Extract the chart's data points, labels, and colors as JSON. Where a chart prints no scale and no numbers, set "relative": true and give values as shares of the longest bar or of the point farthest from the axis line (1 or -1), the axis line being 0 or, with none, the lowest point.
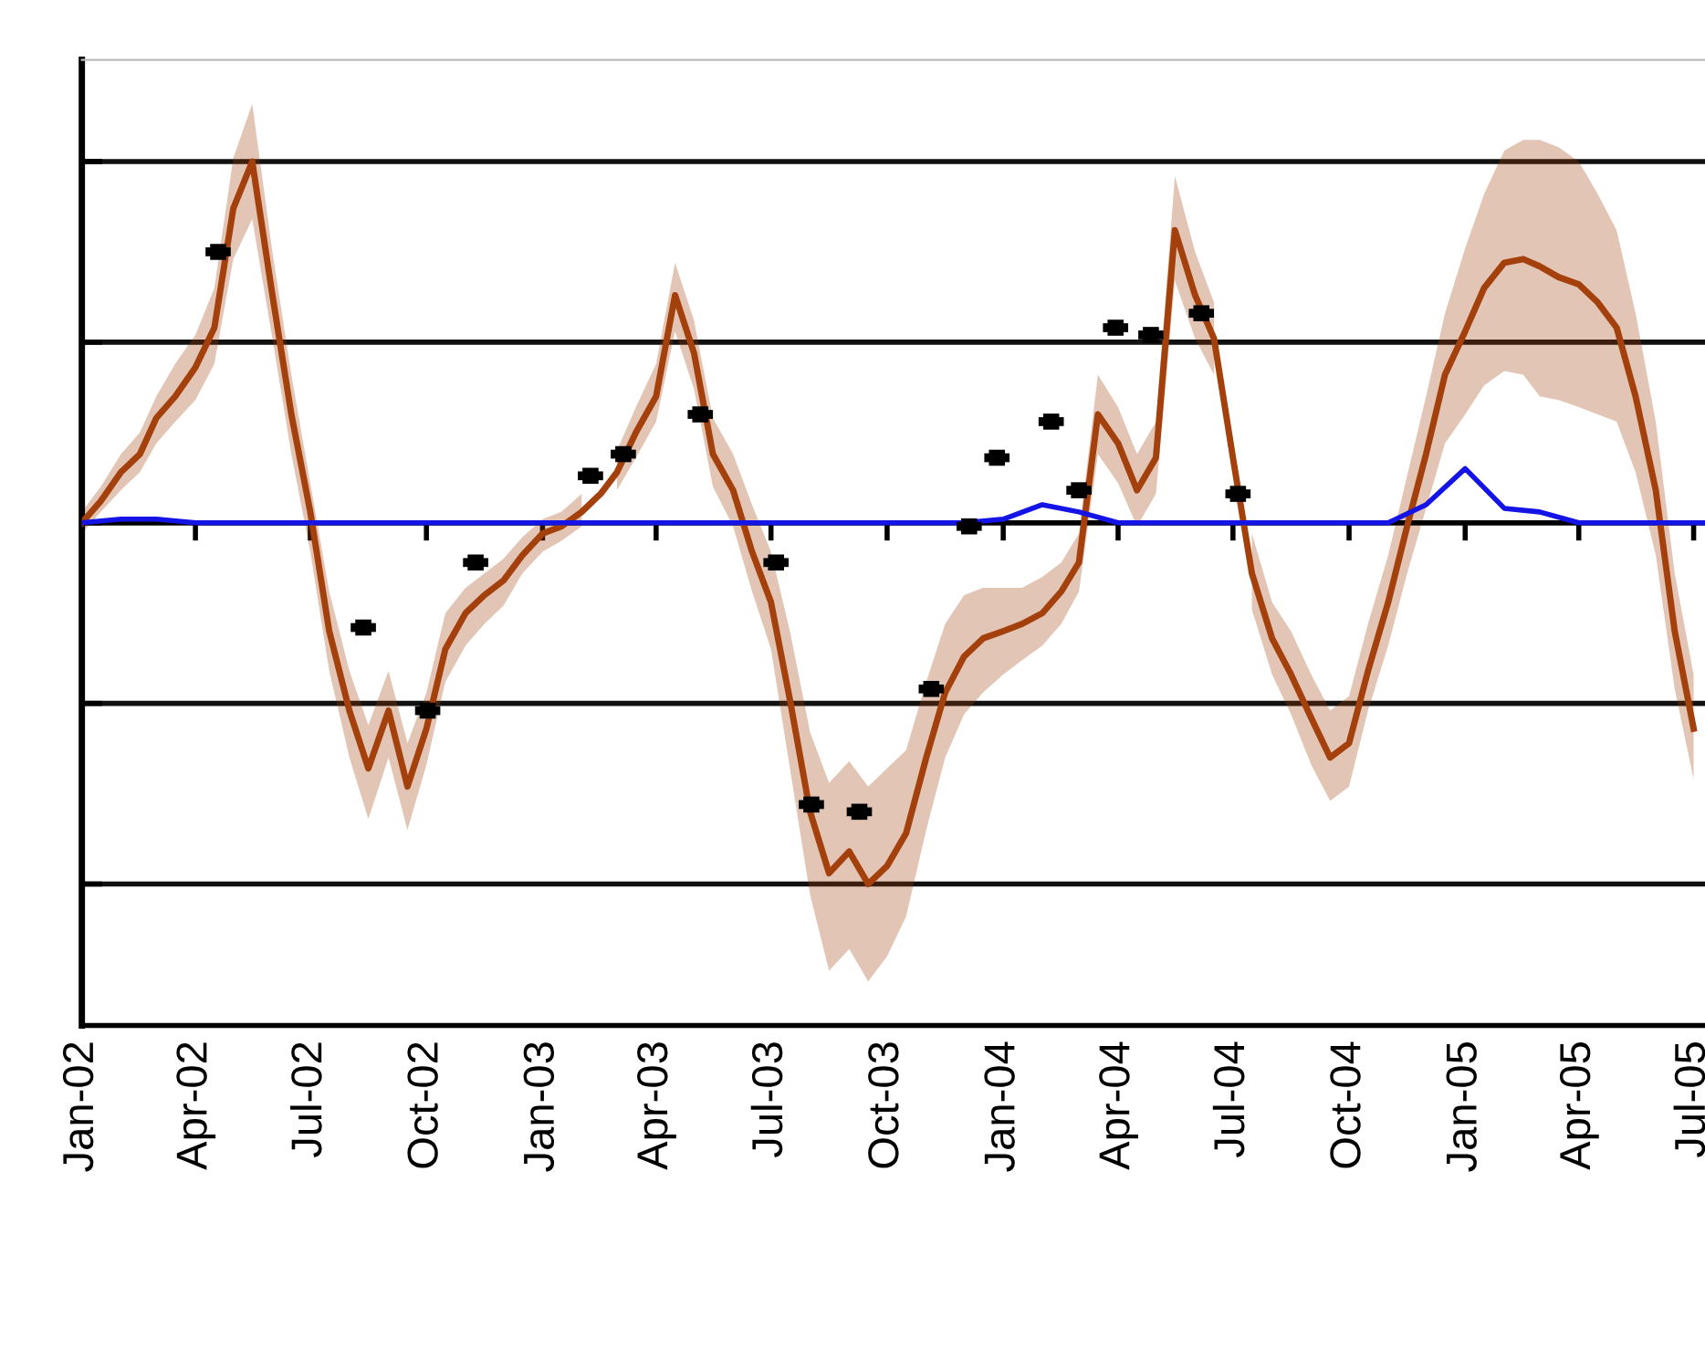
{
  "chart_data": {
    "type": "line",
    "relative": true,
    "grid": "y",
    "legend": false,
    "xlim": [
      "2002-01-01",
      "2005-07-10"
    ],
    "xticks": [
      {
        "value": "2002-01-01",
        "label": "Jan-02"
      },
      {
        "value": "2002-04-01",
        "label": "Apr-02"
      },
      {
        "value": "2002-07-01",
        "label": "Jul-02"
      },
      {
        "value": "2002-10-01",
        "label": "Oct-02"
      },
      {
        "value": "2003-01-01",
        "label": "Jan-03"
      },
      {
        "value": "2003-04-01",
        "label": "Apr-03"
      },
      {
        "value": "2003-07-01",
        "label": "Jul-03"
      },
      {
        "value": "2003-10-01",
        "label": "Oct-03"
      },
      {
        "value": "2004-01-01",
        "label": "Jan-04"
      },
      {
        "value": "2004-04-01",
        "label": "Apr-04"
      },
      {
        "value": "2004-07-01",
        "label": "Jul-04"
      },
      {
        "value": "2004-10-01",
        "label": "Oct-04"
      },
      {
        "value": "2005-01-01",
        "label": "Jan-05"
      },
      {
        "value": "2005-04-01",
        "label": "Apr-05"
      },
      {
        "value": "2005-07-01",
        "label": "Jul-05"
      }
    ],
    "series": [
      {
        "color": "#a3400c",
        "line_style": "solid",
        "marker": "none",
        "x": [
          "2002-01-01",
          "2002-01-16",
          "2002-02-01",
          "2002-02-16",
          "2002-03-01",
          "2002-03-16",
          "2002-04-01",
          "2002-04-16",
          "2002-05-01",
          "2002-05-16",
          "2002-06-01",
          "2002-06-16",
          "2002-07-01",
          "2002-07-16",
          "2002-08-01",
          "2002-08-16",
          "2002-09-01",
          "2002-09-16",
          "2002-10-01",
          "2002-10-16",
          "2002-11-01",
          "2002-11-16",
          "2002-12-01",
          "2002-12-16",
          "2003-01-01",
          "2003-01-16",
          "2003-02-01",
          "2003-02-16",
          "2003-03-01",
          "2003-03-16",
          "2003-04-01",
          "2003-04-16",
          "2003-05-01",
          "2003-05-16",
          "2003-06-01",
          "2003-06-16",
          "2003-07-01",
          "2003-07-16",
          "2003-08-01",
          "2003-08-16",
          "2003-09-01",
          "2003-09-16",
          "2003-10-01",
          "2003-10-16",
          "2003-11-01",
          "2003-11-16",
          "2003-12-01",
          "2003-12-16",
          "2004-01-01",
          "2004-01-16",
          "2004-02-01",
          "2004-02-16",
          "2004-03-01",
          "2004-03-16",
          "2004-04-01",
          "2004-04-16",
          "2004-05-01",
          "2004-05-16",
          "2004-06-01",
          "2004-06-16",
          "2004-07-01",
          "2004-07-16",
          "2004-08-01",
          "2004-08-16",
          "2004-09-01",
          "2004-09-16",
          "2004-10-01",
          "2004-10-16",
          "2004-11-01",
          "2004-11-16",
          "2004-12-01",
          "2004-12-16",
          "2005-01-01",
          "2005-01-16",
          "2005-02-01",
          "2005-02-16",
          "2005-03-01",
          "2005-03-16",
          "2005-04-01",
          "2005-04-16",
          "2005-05-01",
          "2005-05-16",
          "2005-06-01",
          "2005-06-16",
          "2005-07-01"
        ],
        "values": [
          0,
          0.06,
          0.14,
          0.19,
          0.29,
          0.35,
          0.43,
          0.54,
          0.87,
          1.0,
          0.63,
          0.3,
          0.03,
          -0.3,
          -0.52,
          -0.68,
          -0.52,
          -0.73,
          -0.57,
          -0.35,
          -0.25,
          -0.2,
          -0.16,
          -0.09,
          -0.03,
          -0.01,
          0.03,
          0.08,
          0.14,
          0.25,
          0.35,
          0.63,
          0.47,
          0.19,
          0.09,
          -0.08,
          -0.22,
          -0.49,
          -0.8,
          -0.97,
          -0.91,
          -1.0,
          -0.95,
          -0.86,
          -0.65,
          -0.47,
          -0.37,
          -0.32,
          -0.3,
          -0.28,
          -0.25,
          -0.19,
          -0.11,
          0.3,
          0.22,
          0.09,
          0.18,
          0.81,
          0.63,
          0.51,
          0.18,
          -0.14,
          -0.32,
          -0.42,
          -0.54,
          -0.65,
          -0.61,
          -0.41,
          -0.22,
          -0.01,
          0.19,
          0.41,
          0.53,
          0.65,
          0.72,
          0.73,
          0.71,
          0.68,
          0.66,
          0.61,
          0.54,
          0.35,
          0.09,
          -0.3,
          -0.57
        ],
        "lower": [
          -0.03,
          0.03,
          0.09,
          0.14,
          0.22,
          0.28,
          0.34,
          0.44,
          0.73,
          0.84,
          0.51,
          0.19,
          -0.08,
          -0.41,
          -0.65,
          -0.82,
          -0.65,
          -0.85,
          -0.67,
          -0.44,
          -0.34,
          -0.28,
          -0.23,
          -0.14,
          -0.08,
          -0.05,
          -0.01,
          null,
          0.09,
          0.18,
          0.28,
          0.53,
          0.37,
          0.1,
          -0.01,
          -0.19,
          -0.35,
          -0.68,
          -1.03,
          -1.24,
          -1.18,
          -1.27,
          -1.2,
          -1.09,
          -0.85,
          -0.65,
          -0.53,
          -0.47,
          -0.42,
          -0.38,
          -0.34,
          -0.28,
          -0.19,
          0.19,
          0.11,
          -0.01,
          0.08,
          0.67,
          0.51,
          0.41,
          null,
          -0.24,
          -0.42,
          -0.53,
          -0.67,
          -0.77,
          -0.73,
          -0.52,
          -0.34,
          -0.14,
          0.04,
          0.22,
          0.3,
          0.38,
          0.42,
          0.41,
          0.35,
          0.34,
          0.32,
          0.3,
          0.28,
          0.14,
          -0.09,
          -0.46,
          -0.71
        ],
        "upper": [
          0.03,
          0.1,
          0.19,
          0.25,
          0.35,
          0.44,
          0.52,
          0.65,
          1.01,
          1.16,
          0.75,
          0.41,
          0.11,
          -0.19,
          -0.41,
          -0.56,
          -0.41,
          -0.61,
          -0.47,
          -0.25,
          -0.18,
          -0.14,
          -0.1,
          -0.04,
          0.01,
          0.03,
          0.08,
          null,
          0.2,
          0.32,
          0.44,
          0.72,
          0.56,
          0.29,
          0.19,
          0.05,
          -0.08,
          -0.3,
          -0.58,
          -0.72,
          -0.66,
          -0.73,
          -0.68,
          -0.63,
          -0.44,
          -0.28,
          -0.2,
          -0.18,
          -0.18,
          -0.18,
          -0.15,
          -0.11,
          -0.03,
          0.41,
          0.32,
          0.19,
          0.28,
          0.96,
          0.75,
          0.61,
          null,
          -0.03,
          -0.22,
          -0.3,
          -0.42,
          -0.52,
          -0.48,
          -0.28,
          -0.09,
          0.13,
          0.35,
          0.58,
          0.76,
          0.91,
          1.03,
          1.06,
          1.06,
          1.04,
          1.0,
          0.91,
          0.81,
          0.58,
          0.28,
          -0.14,
          -0.42
        ]
      },
      {
        "color": "#1414e6",
        "line_style": "solid",
        "marker": "none",
        "x": [
          "2002-01-01",
          "2002-02-01",
          "2002-03-01",
          "2002-04-01",
          "2002-05-01",
          "2002-06-01",
          "2002-07-01",
          "2002-08-01",
          "2002-09-01",
          "2002-10-01",
          "2002-11-01",
          "2002-12-01",
          "2003-01-01",
          "2003-02-01",
          "2003-03-01",
          "2003-04-01",
          "2003-05-01",
          "2003-06-01",
          "2003-07-01",
          "2003-08-01",
          "2003-09-01",
          "2003-10-01",
          "2003-11-01",
          "2003-12-01",
          "2004-01-01",
          "2004-02-01",
          "2004-03-01",
          "2004-04-01",
          "2004-05-01",
          "2004-06-01",
          "2004-07-01",
          "2004-08-01",
          "2004-09-01",
          "2004-10-01",
          "2004-11-01",
          "2004-12-01",
          "2005-01-01",
          "2005-02-01",
          "2005-03-01",
          "2005-04-01",
          "2005-05-01",
          "2005-06-01",
          "2005-07-01",
          "2005-07-10"
        ],
        "values": [
          0,
          0.01,
          0.01,
          0,
          0,
          0,
          0,
          0,
          0,
          0,
          0,
          0,
          0,
          0,
          0,
          0,
          0,
          0,
          0,
          0,
          0,
          0,
          0,
          0,
          0.01,
          0.05,
          0.03,
          0,
          0,
          0,
          0,
          0,
          0,
          0,
          0,
          0.05,
          0.15,
          0.04,
          0.03,
          0,
          0,
          0,
          0,
          0
        ]
      },
      {
        "type": "scatter",
        "color": "#000000",
        "marker": "square",
        "x": [
          "2002-04-19",
          "2002-08-12",
          "2002-10-02",
          "2002-11-09",
          "2003-02-08",
          "2003-03-06",
          "2003-05-06",
          "2003-07-05",
          "2003-08-02",
          "2003-09-09",
          "2003-11-05",
          "2003-12-05",
          "2003-12-27",
          "2004-02-08",
          "2004-03-01",
          "2004-03-30",
          "2004-04-27",
          "2004-06-06",
          "2004-07-05"
        ],
        "values": [
          0.75,
          -0.29,
          -0.52,
          -0.11,
          0.13,
          0.19,
          0.3,
          -0.11,
          -0.78,
          -0.8,
          -0.46,
          -0.01,
          0.18,
          0.28,
          0.09,
          0.54,
          0.52,
          0.58,
          0.08
        ],
        "xerrors": [
          10,
          10,
          10,
          10,
          10,
          10,
          10,
          10,
          10,
          10,
          10,
          10,
          10,
          10,
          10,
          10,
          10,
          10,
          10
        ]
      }
    ]
  }
}
